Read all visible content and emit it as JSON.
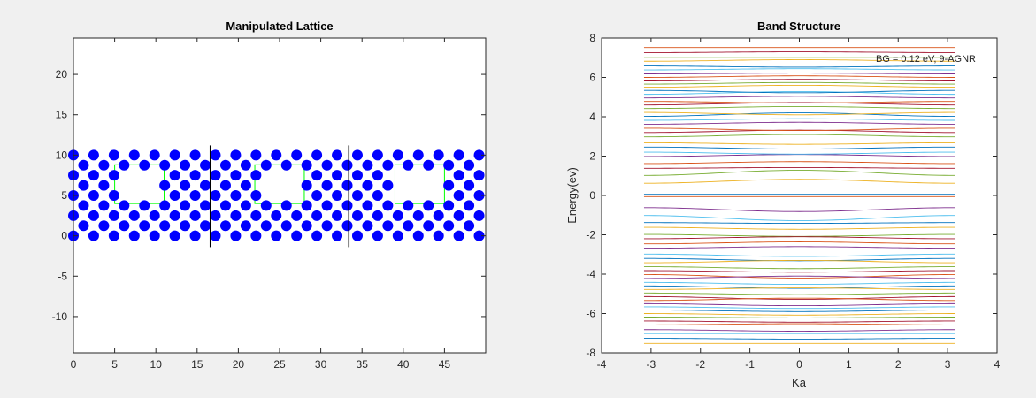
{
  "chart_data": [
    {
      "type": "scatter",
      "title": "Manipulated Lattice",
      "xlabel": "",
      "ylabel": "",
      "xlim": [
        0,
        50
      ],
      "ylim": [
        -14.5,
        24.5
      ],
      "xticks": [
        0,
        5,
        10,
        15,
        20,
        25,
        30,
        35,
        40,
        45
      ],
      "yticks": [
        -10,
        -5,
        0,
        5,
        10,
        15,
        20
      ],
      "grid": false,
      "marker_color": "#0000ff",
      "divider_color": "#000000",
      "hole_color": "#00ff00",
      "atom_rows_y": [
        0,
        1.25,
        2.5,
        3.75,
        5,
        6.25,
        7.5,
        8.75,
        10
      ],
      "atom_x_spacing": 2.46,
      "atom_x_range": [
        0,
        50
      ],
      "dividers_x": [
        16.6,
        33.4
      ],
      "divider_ylim": [
        -1.4,
        11.2
      ],
      "holes": [
        {
          "x": [
            5,
            11
          ],
          "y": [
            4,
            8.8
          ]
        },
        {
          "x": [
            22,
            28
          ],
          "y": [
            4,
            8.8
          ]
        },
        {
          "x": [
            39,
            45
          ],
          "y": [
            4,
            8.8
          ]
        }
      ]
    },
    {
      "type": "line",
      "title": "Band Structure",
      "xlabel": "Ka",
      "ylabel": "Energy(ev)",
      "xlim": [
        -4,
        4
      ],
      "ylim": [
        -8,
        8
      ],
      "xticks": [
        -4,
        -3,
        -2,
        -1,
        0,
        1,
        2,
        3,
        4
      ],
      "yticks": [
        -8,
        -6,
        -4,
        -2,
        0,
        2,
        4,
        6,
        8
      ],
      "k_range": [
        -3.14159,
        3.14159
      ],
      "grid": false,
      "annotation": "BG = 0.12 eV, 9-AGNR",
      "series_colors": [
        "#0072bd",
        "#d95319",
        "#edb120",
        "#7e2f8e",
        "#77ac30",
        "#4dbeee",
        "#a2142f"
      ],
      "band_energies_at_edge": [
        0.06,
        0.62,
        1.02,
        1.38,
        1.62,
        1.98,
        2.2,
        2.46,
        2.68,
        2.98,
        3.2,
        3.42,
        3.62,
        3.82,
        4.02,
        4.22,
        4.42,
        4.6,
        4.78,
        4.96,
        5.14,
        5.34,
        5.5,
        5.66,
        5.82,
        6.0,
        6.18,
        6.38,
        6.58,
        6.82,
        7.02,
        7.26,
        7.52
      ],
      "band_energies_at_center": [
        0.06,
        0.82,
        1.28,
        1.42,
        1.72,
        2.08,
        2.1,
        2.36,
        2.6,
        3.1,
        3.32,
        3.3,
        3.72,
        3.9,
        4.2,
        4.1,
        4.52,
        4.72,
        4.7,
        5.04,
        5.28,
        5.22,
        5.6,
        5.74,
        5.9,
        6.08,
        6.22,
        6.44,
        6.52,
        6.9,
        7.02,
        7.3,
        7.52
      ]
    }
  ]
}
